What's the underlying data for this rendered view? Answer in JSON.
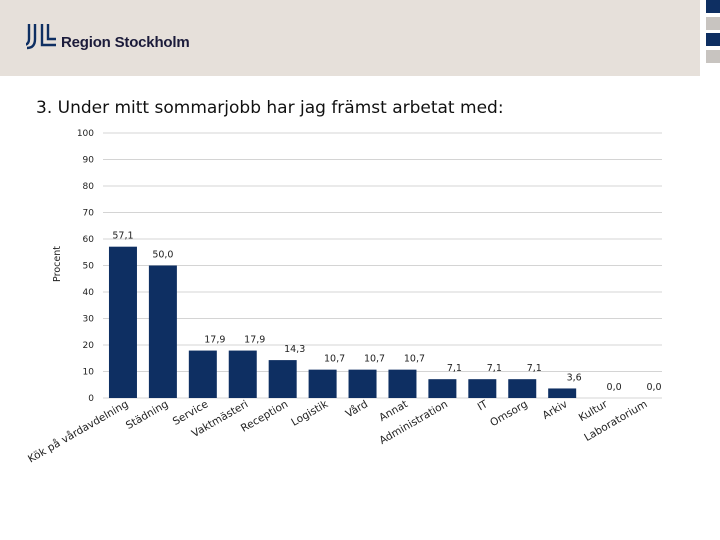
{
  "brand": {
    "name": "Region Stockholm"
  },
  "colors": {
    "header_bg": "#e6e0da",
    "bar": "#0e2f62",
    "accent_squares": [
      "#0e2f62",
      "#c8c4c0",
      "#0e2f62",
      "#c8c4c0"
    ]
  },
  "slide": {
    "title": "3. Under mitt sommarjobb har jag främst arbetat med:"
  },
  "chart_data": {
    "type": "bar",
    "title": "3. Under mitt sommarjobb har jag främst arbetat med:",
    "xlabel": "",
    "ylabel": "Procent",
    "ylim": [
      0,
      100
    ],
    "yticks": [
      0,
      10,
      20,
      30,
      40,
      50,
      60,
      70,
      80,
      90,
      100
    ],
    "grid": true,
    "categories": [
      "Kök på vårdavdelning",
      "Städning",
      "Service",
      "Vaktmästeri",
      "Reception",
      "Logistik",
      "Vård",
      "Annat",
      "Administration",
      "IT",
      "Omsorg",
      "Arkiv",
      "Kultur",
      "Laboratorium"
    ],
    "values": [
      57.1,
      50.0,
      17.9,
      17.9,
      14.3,
      10.7,
      10.7,
      10.7,
      7.1,
      7.1,
      7.1,
      3.6,
      0.0,
      0.0
    ],
    "value_labels": [
      "57,1",
      "50,0",
      "17,9",
      "17,9",
      "14,3",
      "10,7",
      "10,7",
      "10,7",
      "7,1",
      "7,1",
      "7,1",
      "3,6",
      "0,0",
      "0,0"
    ]
  }
}
